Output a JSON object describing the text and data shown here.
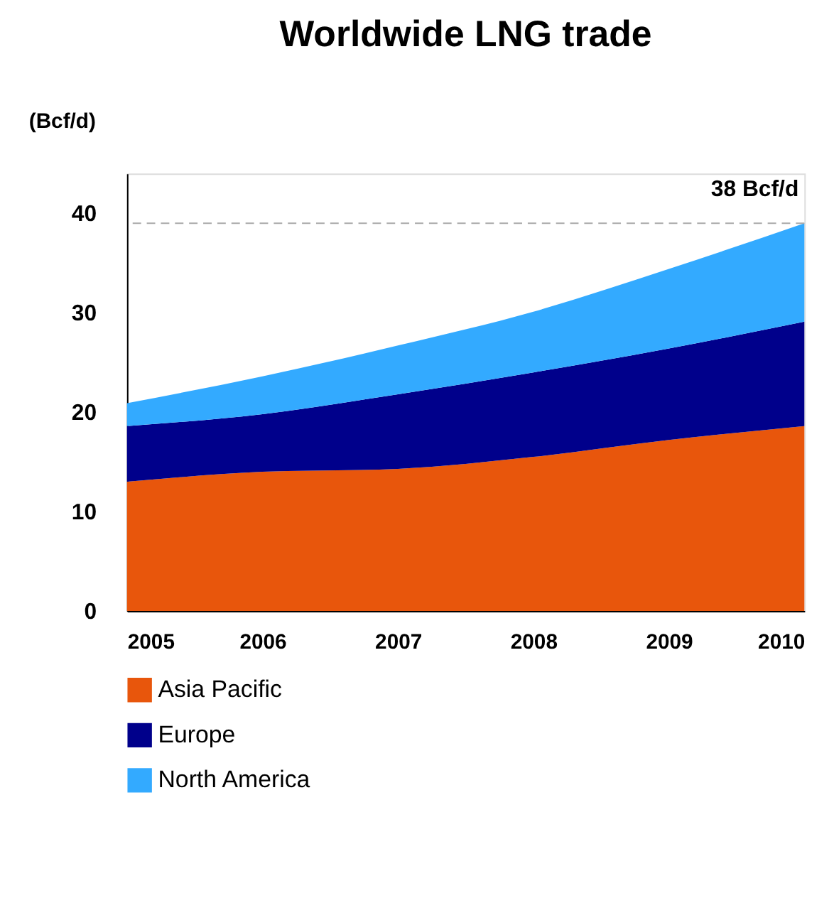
{
  "chart_data": {
    "type": "area",
    "title": "Worldwide LNG trade",
    "ylabel": "(Bcf/d)",
    "stacked": true,
    "x": [
      2005,
      2006,
      2007,
      2008,
      2009,
      2010
    ],
    "xlim": [
      2005,
      2010
    ],
    "xticks": [
      2005,
      2006,
      2007,
      2008,
      2009,
      2010
    ],
    "ylim": [
      0,
      44
    ],
    "yticks": [
      0,
      10,
      20,
      30,
      40
    ],
    "series": [
      {
        "name": "Asia Pacific",
        "color": "#e8560c",
        "values": [
          13,
          14,
          14.3,
          15.5,
          17.2,
          18.6
        ]
      },
      {
        "name": "Europe",
        "color": "#00008b",
        "values": [
          5.6,
          5.8,
          7.5,
          8.5,
          9.2,
          10.5
        ]
      },
      {
        "name": "North America",
        "color": "#33aaff",
        "values": [
          2.3,
          3.8,
          4.9,
          6.1,
          8,
          9.9
        ]
      }
    ],
    "ref_lines": [
      {
        "axis": "y",
        "value": 39,
        "label": "38 Bcf/d",
        "color": "#aaaaaa",
        "line_style": "dashed"
      }
    ],
    "grid": false,
    "legend": "bottom"
  }
}
